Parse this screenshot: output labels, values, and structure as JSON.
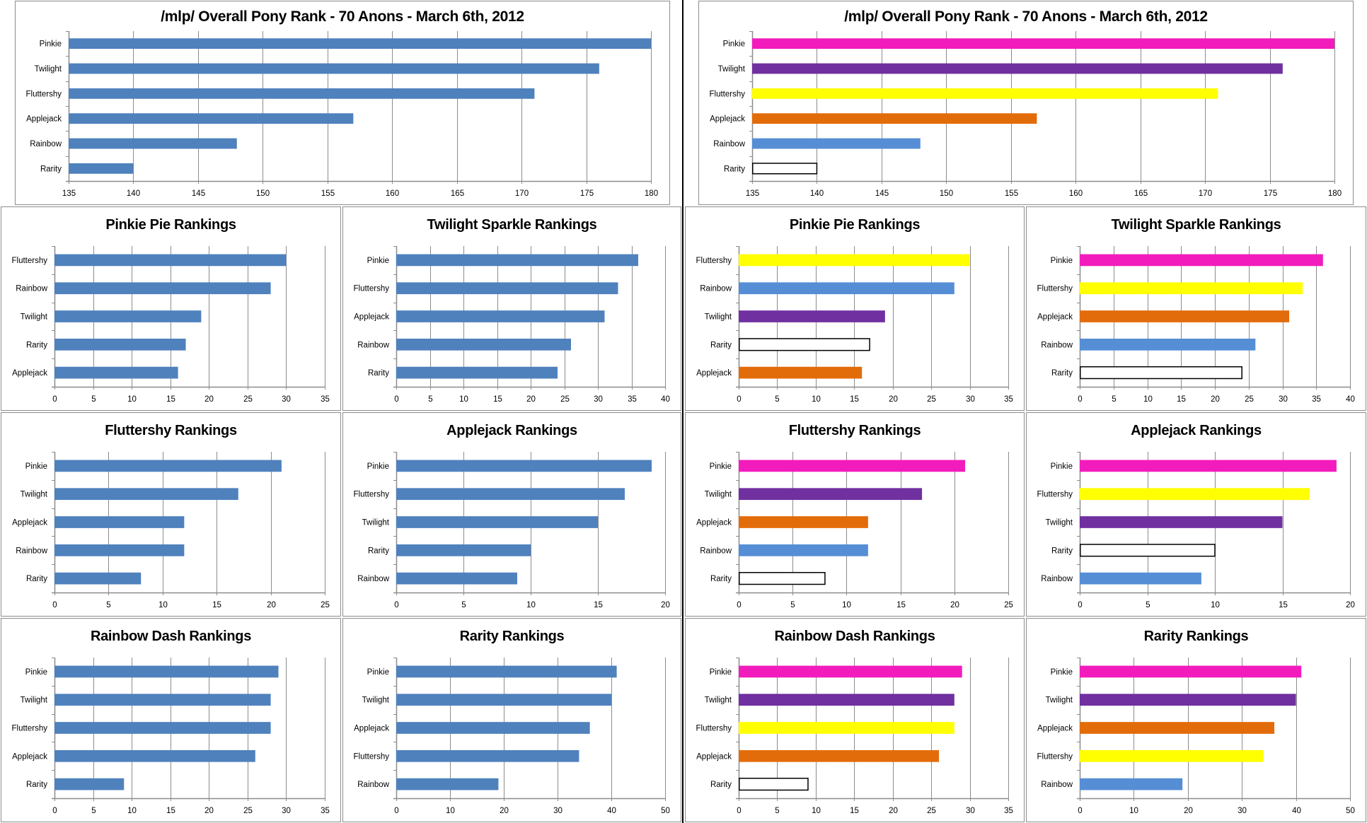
{
  "colors": {
    "default_bar": "#4F81BD",
    "Pinkie": "#F21CBC",
    "Twilight": "#7030A0",
    "Fluttershy": "#FFFF00",
    "Applejack": "#E36C0A",
    "Rainbow": "#558ED5",
    "Rarity": "#FFFFFF",
    "Rarity_outline": "#000000",
    "grid": "#8C8C8C",
    "divider": "#000000"
  },
  "chart_data": [
    {
      "id": "overall-plain",
      "type": "bar",
      "orientation": "horizontal",
      "colored": false,
      "title": "/mlp/ Overall Pony Rank - 70 Anons - March 6th, 2012",
      "categories": [
        "Pinkie",
        "Twilight",
        "Fluttershy",
        "Applejack",
        "Rainbow",
        "Rarity"
      ],
      "values": [
        180,
        176,
        171,
        157,
        148,
        140
      ],
      "xlim": [
        135,
        180
      ],
      "ticks": [
        "135",
        "140",
        "145",
        "150",
        "155",
        "160",
        "165",
        "170",
        "175",
        "180"
      ],
      "grid": true,
      "legend": "none"
    },
    {
      "id": "overall-colored",
      "type": "bar",
      "orientation": "horizontal",
      "colored": true,
      "title": "/mlp/ Overall Pony Rank - 70 Anons - March 6th, 2012",
      "categories": [
        "Pinkie",
        "Twilight",
        "Fluttershy",
        "Applejack",
        "Rainbow",
        "Rarity"
      ],
      "values": [
        180,
        176,
        171,
        157,
        148,
        140
      ],
      "xlim": [
        135,
        180
      ],
      "ticks": [
        "135",
        "140",
        "145",
        "150",
        "155",
        "160",
        "165",
        "170",
        "175",
        "180"
      ],
      "grid": true,
      "legend": "none"
    },
    {
      "id": "pinkie-plain",
      "type": "bar",
      "orientation": "horizontal",
      "colored": false,
      "title": "Pinkie Pie Rankings",
      "categories": [
        "Fluttershy",
        "Rainbow",
        "Twilight",
        "Rarity",
        "Applejack"
      ],
      "values": [
        30,
        28,
        19,
        17,
        16
      ],
      "xlim": [
        0,
        35
      ],
      "ticks": [
        "0",
        "5",
        "10",
        "15",
        "20",
        "25",
        "30",
        "35"
      ],
      "grid": true,
      "legend": "none"
    },
    {
      "id": "twilight-plain",
      "type": "bar",
      "orientation": "horizontal",
      "colored": false,
      "title": "Twilight Sparkle Rankings",
      "categories": [
        "Pinkie",
        "Fluttershy",
        "Applejack",
        "Rainbow",
        "Rarity"
      ],
      "values": [
        36,
        33,
        31,
        26,
        24
      ],
      "xlim": [
        0,
        40
      ],
      "ticks": [
        "0",
        "5",
        "10",
        "15",
        "20",
        "25",
        "30",
        "35",
        "40"
      ],
      "grid": true,
      "legend": "none"
    },
    {
      "id": "pinkie-colored",
      "type": "bar",
      "orientation": "horizontal",
      "colored": true,
      "title": "Pinkie Pie Rankings",
      "categories": [
        "Fluttershy",
        "Rainbow",
        "Twilight",
        "Rarity",
        "Applejack"
      ],
      "values": [
        30,
        28,
        19,
        17,
        16
      ],
      "xlim": [
        0,
        35
      ],
      "ticks": [
        "0",
        "5",
        "10",
        "15",
        "20",
        "25",
        "30",
        "35"
      ],
      "grid": true,
      "legend": "none"
    },
    {
      "id": "twilight-colored",
      "type": "bar",
      "orientation": "horizontal",
      "colored": true,
      "title": "Twilight Sparkle Rankings",
      "categories": [
        "Pinkie",
        "Fluttershy",
        "Applejack",
        "Rainbow",
        "Rarity"
      ],
      "values": [
        36,
        33,
        31,
        26,
        24
      ],
      "xlim": [
        0,
        40
      ],
      "ticks": [
        "0",
        "5",
        "10",
        "15",
        "20",
        "25",
        "30",
        "35",
        "40"
      ],
      "grid": true,
      "legend": "none"
    },
    {
      "id": "fluttershy-plain",
      "type": "bar",
      "orientation": "horizontal",
      "colored": false,
      "title": "Fluttershy Rankings",
      "categories": [
        "Pinkie",
        "Twilight",
        "Applejack",
        "Rainbow",
        "Rarity"
      ],
      "values": [
        21,
        17,
        12,
        12,
        8
      ],
      "xlim": [
        0,
        25
      ],
      "ticks": [
        "0",
        "5",
        "10",
        "15",
        "20",
        "25"
      ],
      "grid": true,
      "legend": "none"
    },
    {
      "id": "applejack-plain",
      "type": "bar",
      "orientation": "horizontal",
      "colored": false,
      "title": "Applejack Rankings",
      "categories": [
        "Pinkie",
        "Fluttershy",
        "Twilight",
        "Rarity",
        "Rainbow"
      ],
      "values": [
        19,
        17,
        15,
        10,
        9
      ],
      "xlim": [
        0,
        20
      ],
      "ticks": [
        "0",
        "5",
        "10",
        "15",
        "20"
      ],
      "grid": true,
      "legend": "none"
    },
    {
      "id": "fluttershy-colored",
      "type": "bar",
      "orientation": "horizontal",
      "colored": true,
      "title": "Fluttershy Rankings",
      "categories": [
        "Pinkie",
        "Twilight",
        "Applejack",
        "Rainbow",
        "Rarity"
      ],
      "values": [
        21,
        17,
        12,
        12,
        8
      ],
      "xlim": [
        0,
        25
      ],
      "ticks": [
        "0",
        "5",
        "10",
        "15",
        "20",
        "25"
      ],
      "grid": true,
      "legend": "none"
    },
    {
      "id": "applejack-colored",
      "type": "bar",
      "orientation": "horizontal",
      "colored": true,
      "title": "Applejack Rankings",
      "categories": [
        "Pinkie",
        "Fluttershy",
        "Twilight",
        "Rarity",
        "Rainbow"
      ],
      "values": [
        19,
        17,
        15,
        10,
        9
      ],
      "xlim": [
        0,
        20
      ],
      "ticks": [
        "0",
        "5",
        "10",
        "15",
        "20"
      ],
      "grid": true,
      "legend": "none"
    },
    {
      "id": "rainbow-plain",
      "type": "bar",
      "orientation": "horizontal",
      "colored": false,
      "title": "Rainbow Dash Rankings",
      "categories": [
        "Pinkie",
        "Twilight",
        "Fluttershy",
        "Applejack",
        "Rarity"
      ],
      "values": [
        29,
        28,
        28,
        26,
        9
      ],
      "xlim": [
        0,
        35
      ],
      "ticks": [
        "0",
        "5",
        "10",
        "15",
        "20",
        "25",
        "30",
        "35"
      ],
      "grid": true,
      "legend": "none"
    },
    {
      "id": "rarity-plain",
      "type": "bar",
      "orientation": "horizontal",
      "colored": false,
      "title": "Rarity Rankings",
      "categories": [
        "Pinkie",
        "Twilight",
        "Applejack",
        "Fluttershy",
        "Rainbow"
      ],
      "values": [
        41,
        40,
        36,
        34,
        19
      ],
      "xlim": [
        0,
        50
      ],
      "ticks": [
        "0",
        "10",
        "20",
        "30",
        "40",
        "50"
      ],
      "grid": true,
      "legend": "none"
    },
    {
      "id": "rainbow-colored",
      "type": "bar",
      "orientation": "horizontal",
      "colored": true,
      "title": "Rainbow Dash Rankings",
      "categories": [
        "Pinkie",
        "Twilight",
        "Fluttershy",
        "Applejack",
        "Rarity"
      ],
      "values": [
        29,
        28,
        28,
        26,
        9
      ],
      "xlim": [
        0,
        35
      ],
      "ticks": [
        "0",
        "5",
        "10",
        "15",
        "20",
        "25",
        "30",
        "35"
      ],
      "grid": true,
      "legend": "none"
    },
    {
      "id": "rarity-colored",
      "type": "bar",
      "orientation": "horizontal",
      "colored": true,
      "title": "Rarity Rankings",
      "categories": [
        "Pinkie",
        "Twilight",
        "Applejack",
        "Fluttershy",
        "Rainbow"
      ],
      "values": [
        41,
        40,
        36,
        34,
        19
      ],
      "xlim": [
        0,
        50
      ],
      "ticks": [
        "0",
        "10",
        "20",
        "30",
        "40",
        "50"
      ],
      "grid": true,
      "legend": "none"
    }
  ]
}
